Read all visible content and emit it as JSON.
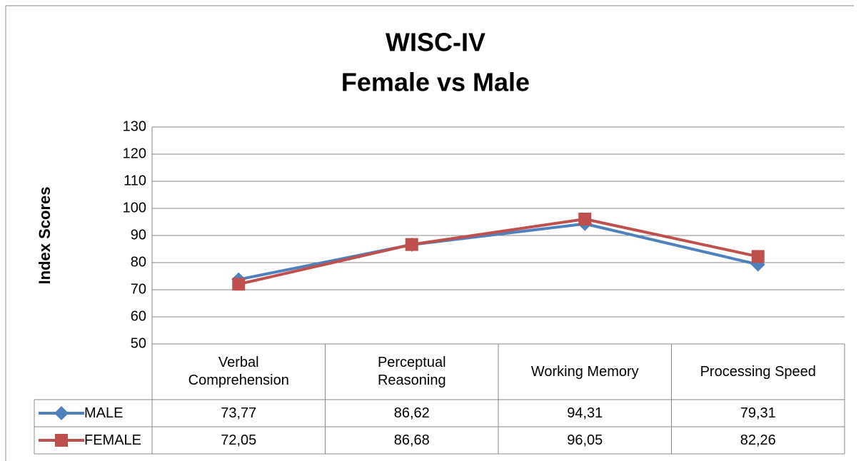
{
  "chart_data": {
    "type": "line",
    "title": "WISC-IV",
    "subtitle": "Female vs Male",
    "y_label": "Index Scores",
    "categories": [
      "Verbal Comprehension",
      "Perceptual Reasoning",
      "Working Memory",
      "Processing Speed"
    ],
    "series": [
      {
        "name": "MALE",
        "color": "#4f81bd",
        "marker": "diamond",
        "values": [
          73.77,
          86.62,
          94.31,
          79.31
        ],
        "value_labels": [
          "73,77",
          "86,62",
          "94,31",
          "79,31"
        ]
      },
      {
        "name": "FEMALE",
        "color": "#c0504d",
        "marker": "square",
        "values": [
          72.05,
          86.68,
          96.05,
          82.26
        ],
        "value_labels": [
          "72,05",
          "86,68",
          "96,05",
          "82,26"
        ]
      }
    ],
    "ylim": [
      50,
      130
    ],
    "yticks": [
      50,
      60,
      70,
      80,
      90,
      100,
      110,
      120,
      130
    ],
    "grid": true,
    "data_table": true
  }
}
